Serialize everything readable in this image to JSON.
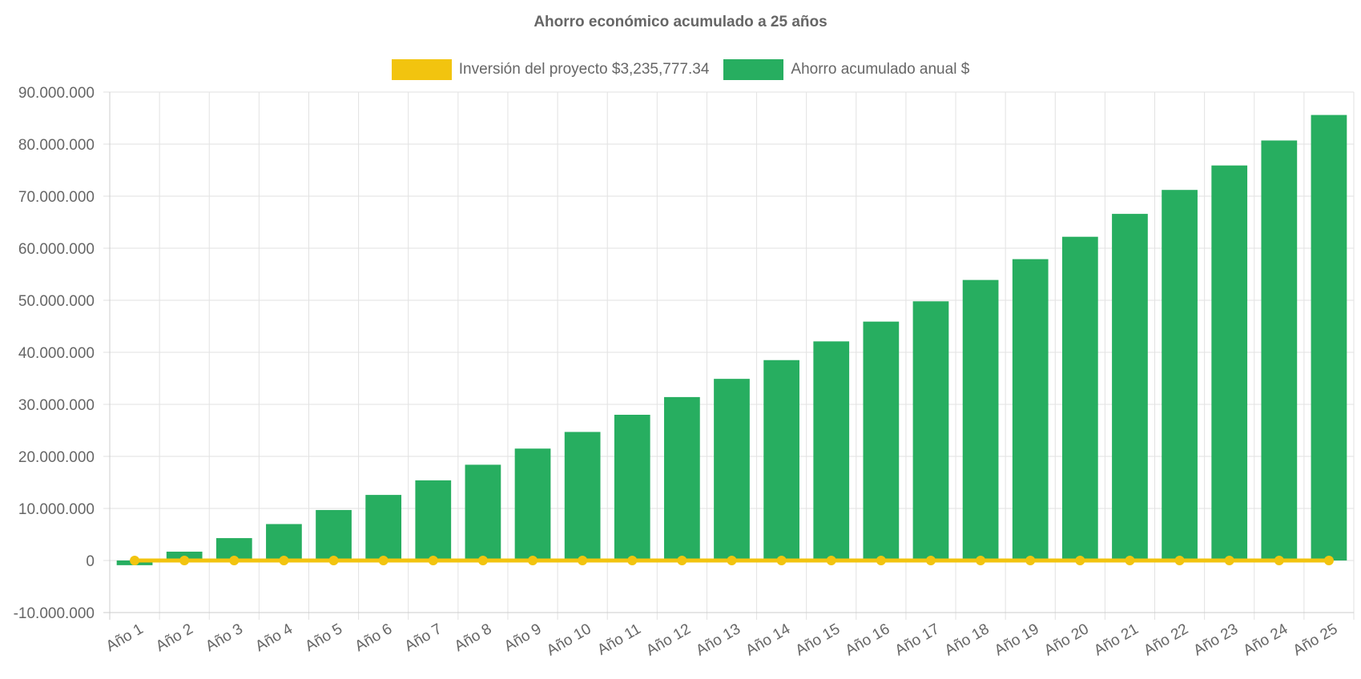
{
  "chart_data": {
    "type": "bar",
    "title": "Ahorro económico acumulado a 25 años",
    "categories": [
      "Año 1",
      "Año 2",
      "Año 3",
      "Año 4",
      "Año 5",
      "Año 6",
      "Año 7",
      "Año 8",
      "Año 9",
      "Año 10",
      "Año 11",
      "Año 12",
      "Año 13",
      "Año 14",
      "Año 15",
      "Año 16",
      "Año 17",
      "Año 18",
      "Año 19",
      "Año 20",
      "Año 21",
      "Año 22",
      "Año 23",
      "Año 24",
      "Año 25"
    ],
    "series": [
      {
        "name": "Inversión del proyecto $3,235,777.34",
        "kind": "line",
        "color": "#f2c40f",
        "values": [
          0,
          0,
          0,
          0,
          0,
          0,
          0,
          0,
          0,
          0,
          0,
          0,
          0,
          0,
          0,
          0,
          0,
          0,
          0,
          0,
          0,
          0,
          0,
          0,
          0
        ]
      },
      {
        "name": "Ahorro acumulado anual $",
        "kind": "bar",
        "color": "#27ae60",
        "values": [
          -900000,
          1700000,
          4300000,
          7000000,
          9700000,
          12600000,
          15400000,
          18400000,
          21500000,
          24700000,
          28000000,
          31400000,
          34900000,
          38500000,
          42100000,
          45900000,
          49800000,
          53900000,
          57900000,
          62200000,
          66600000,
          71200000,
          75900000,
          80700000,
          85600000
        ]
      }
    ],
    "ylim": [
      -10000000,
      90000000
    ],
    "yticks": [
      "90.000.000",
      "80.000.000",
      "70.000.000",
      "60.000.000",
      "50.000.000",
      "40.000.000",
      "30.000.000",
      "20.000.000",
      "10.000.000",
      "0",
      "-10.000.000"
    ],
    "grid": true,
    "legend_position": "top"
  }
}
